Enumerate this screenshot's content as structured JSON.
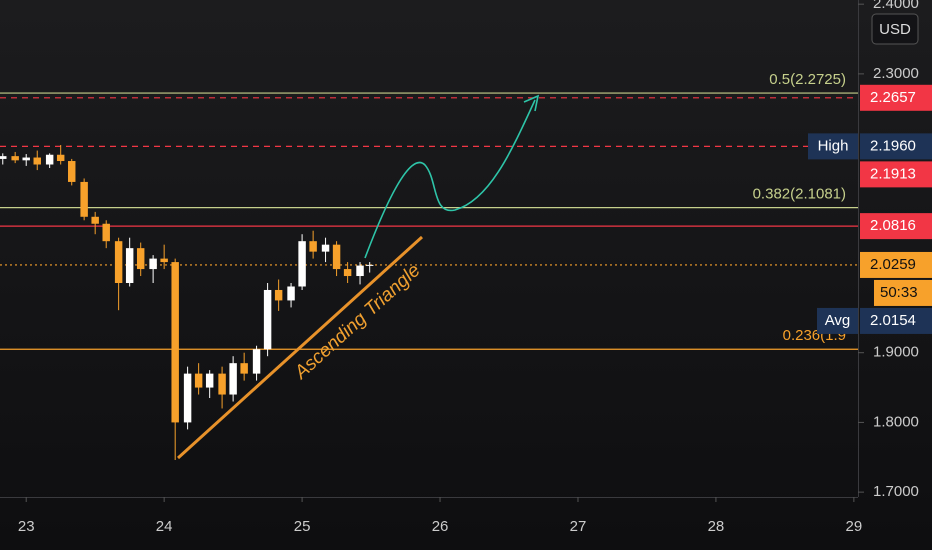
{
  "chart_data": {
    "type": "candlestick",
    "currency": "USD",
    "x": [
      22.83,
      22.92,
      23.0,
      23.08,
      23.17,
      23.25,
      23.33,
      23.42,
      23.5,
      23.58,
      23.67,
      23.75,
      23.83,
      23.92,
      24.0,
      24.08,
      24.17,
      24.25,
      24.33,
      24.42,
      24.5,
      24.58,
      24.67,
      24.75,
      24.83,
      24.92,
      25.0,
      25.08,
      25.17,
      25.25,
      25.33,
      25.42,
      25.49
    ],
    "open": [
      2.178,
      2.182,
      2.176,
      2.18,
      2.17,
      2.184,
      2.175,
      2.145,
      2.095,
      2.085,
      2.06,
      2.0,
      2.05,
      2.02,
      2.035,
      2.03,
      1.8,
      1.87,
      1.85,
      1.87,
      1.84,
      1.885,
      1.87,
      1.905,
      1.99,
      1.975,
      1.995,
      2.06,
      2.045,
      2.055,
      2.02,
      2.01,
      2.025
    ],
    "high": [
      2.186,
      2.188,
      2.185,
      2.19,
      2.186,
      2.198,
      2.178,
      2.15,
      2.102,
      2.09,
      2.065,
      2.065,
      2.058,
      2.04,
      2.055,
      2.035,
      1.88,
      1.885,
      1.875,
      1.88,
      1.895,
      1.9,
      1.91,
      2.0,
      2.005,
      2.0,
      2.07,
      2.075,
      2.065,
      2.06,
      2.03,
      2.03,
      2.03
    ],
    "low": [
      2.17,
      2.172,
      2.168,
      2.162,
      2.165,
      2.17,
      2.14,
      2.09,
      2.07,
      2.05,
      1.961,
      1.995,
      2.01,
      2.0,
      2.02,
      1.746,
      1.79,
      1.84,
      1.835,
      1.82,
      1.83,
      1.86,
      1.86,
      1.895,
      1.96,
      1.965,
      1.99,
      2.035,
      2.03,
      2.01,
      2.0,
      1.998,
      2.015
    ],
    "close": [
      2.182,
      2.176,
      2.18,
      2.17,
      2.184,
      2.175,
      2.145,
      2.095,
      2.085,
      2.06,
      2.0,
      2.05,
      2.02,
      2.035,
      2.03,
      1.8,
      1.87,
      1.85,
      1.87,
      1.84,
      1.885,
      1.87,
      1.905,
      1.99,
      1.975,
      1.995,
      2.06,
      2.045,
      2.055,
      2.02,
      2.01,
      2.025,
      2.026
    ],
    "up_color": "#ffffff",
    "down_color": "#f7a12b",
    "xlim": [
      22.81,
      29.03
    ],
    "xticks": [
      23,
      24,
      25,
      26,
      27,
      28,
      29
    ],
    "ylim": [
      1.693,
      2.406
    ],
    "yticks": [
      {
        "value": 2.4,
        "label": "2.4000"
      },
      {
        "value": 2.3,
        "label": "2.3000"
      },
      {
        "value": 1.9,
        "label": "1.9000"
      },
      {
        "value": 1.8,
        "label": "1.8000"
      },
      {
        "value": 1.7,
        "label": "1.7000"
      }
    ],
    "levels": [
      {
        "value": 2.2725,
        "label": "0.5(2.2725)",
        "color": "#c6d08c",
        "style": "solid"
      },
      {
        "value": 2.2657,
        "color": "#f23645",
        "style": "dashed"
      },
      {
        "value": 2.196,
        "color": "#f23645",
        "style": "dashed"
      },
      {
        "value": 2.1081,
        "label": "0.382(2.1081)",
        "color": "#c6d08c",
        "style": "solid"
      },
      {
        "value": 2.0816,
        "color": "#f23645",
        "style": "solid"
      },
      {
        "value": 2.0259,
        "color": "#f7a12b",
        "style": "dotted"
      },
      {
        "value": 1.905,
        "label": "0.236(1.9",
        "color": "#f7a12b",
        "style": "solid"
      }
    ],
    "price_labels": [
      {
        "value": 2.2657,
        "label": "2.2657",
        "color": "#f23645"
      },
      {
        "value": 2.196,
        "name": "High",
        "label": "2.1960",
        "color": "#1e3356"
      },
      {
        "value": 2.1913,
        "label": "2.1913",
        "color": "#f23645"
      },
      {
        "value": 2.0816,
        "label": "2.0816",
        "color": "#f23645"
      },
      {
        "value": 2.0259,
        "label": "2.0259",
        "color": "#f7a12b",
        "countdown": "50:33"
      },
      {
        "value": 2.0154,
        "name": "Avg",
        "label": "2.0154",
        "color": "#1e3356"
      }
    ],
    "annotation": "Ascending Triangle"
  }
}
